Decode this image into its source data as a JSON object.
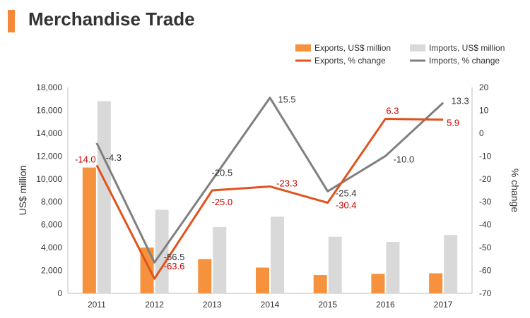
{
  "header": {
    "title": "Merchandise Trade"
  },
  "chart_data": {
    "type": "bar+line",
    "categories": [
      "2011",
      "2012",
      "2013",
      "2014",
      "2015",
      "2016",
      "2017"
    ],
    "bars": [
      {
        "name": "Exports, US$ million",
        "color": "#f6923d",
        "values": [
          11000,
          4000,
          3000,
          2250,
          1600,
          1700,
          1750
        ]
      },
      {
        "name": "Imports, US$ million",
        "color": "#d9d9d9",
        "values": [
          16800,
          7300,
          5800,
          6700,
          4950,
          4500,
          5100
        ]
      }
    ],
    "lines": [
      {
        "name": "Exports, % change",
        "color": "#e0531c",
        "label_color": "#cc0000",
        "values": [
          -14.0,
          -63.6,
          -25.0,
          -23.3,
          -30.4,
          6.3,
          5.9
        ],
        "labels": [
          "-14.0",
          "-63.6",
          "-25.0",
          "-23.3",
          "-30.4",
          "6.3",
          "5.9"
        ]
      },
      {
        "name": "Imports, % change",
        "color": "#7f7f7f",
        "label_color": "#333333",
        "values": [
          -4.3,
          -56.5,
          -20.5,
          15.5,
          -25.4,
          -10.0,
          13.3
        ],
        "labels": [
          "-4.3",
          "-56.5",
          "-20.5",
          "15.5",
          "-25.4",
          "-10.0",
          "13.3"
        ]
      }
    ],
    "ylabel_left": "US$ million",
    "ylabel_right": "% change",
    "ylim_left": [
      0,
      18000
    ],
    "yticks_left": [
      "0",
      "2,000",
      "4,000",
      "6,000",
      "8,000",
      "10,000",
      "12,000",
      "14,000",
      "16,000",
      "18,000"
    ],
    "ylim_right": [
      -70,
      20
    ],
    "yticks_right": [
      "-70",
      "-60",
      "-50",
      "-40",
      "-30",
      "-20",
      "-10",
      "0",
      "10",
      "20"
    ],
    "grid": false,
    "legend_position": "top-right"
  }
}
